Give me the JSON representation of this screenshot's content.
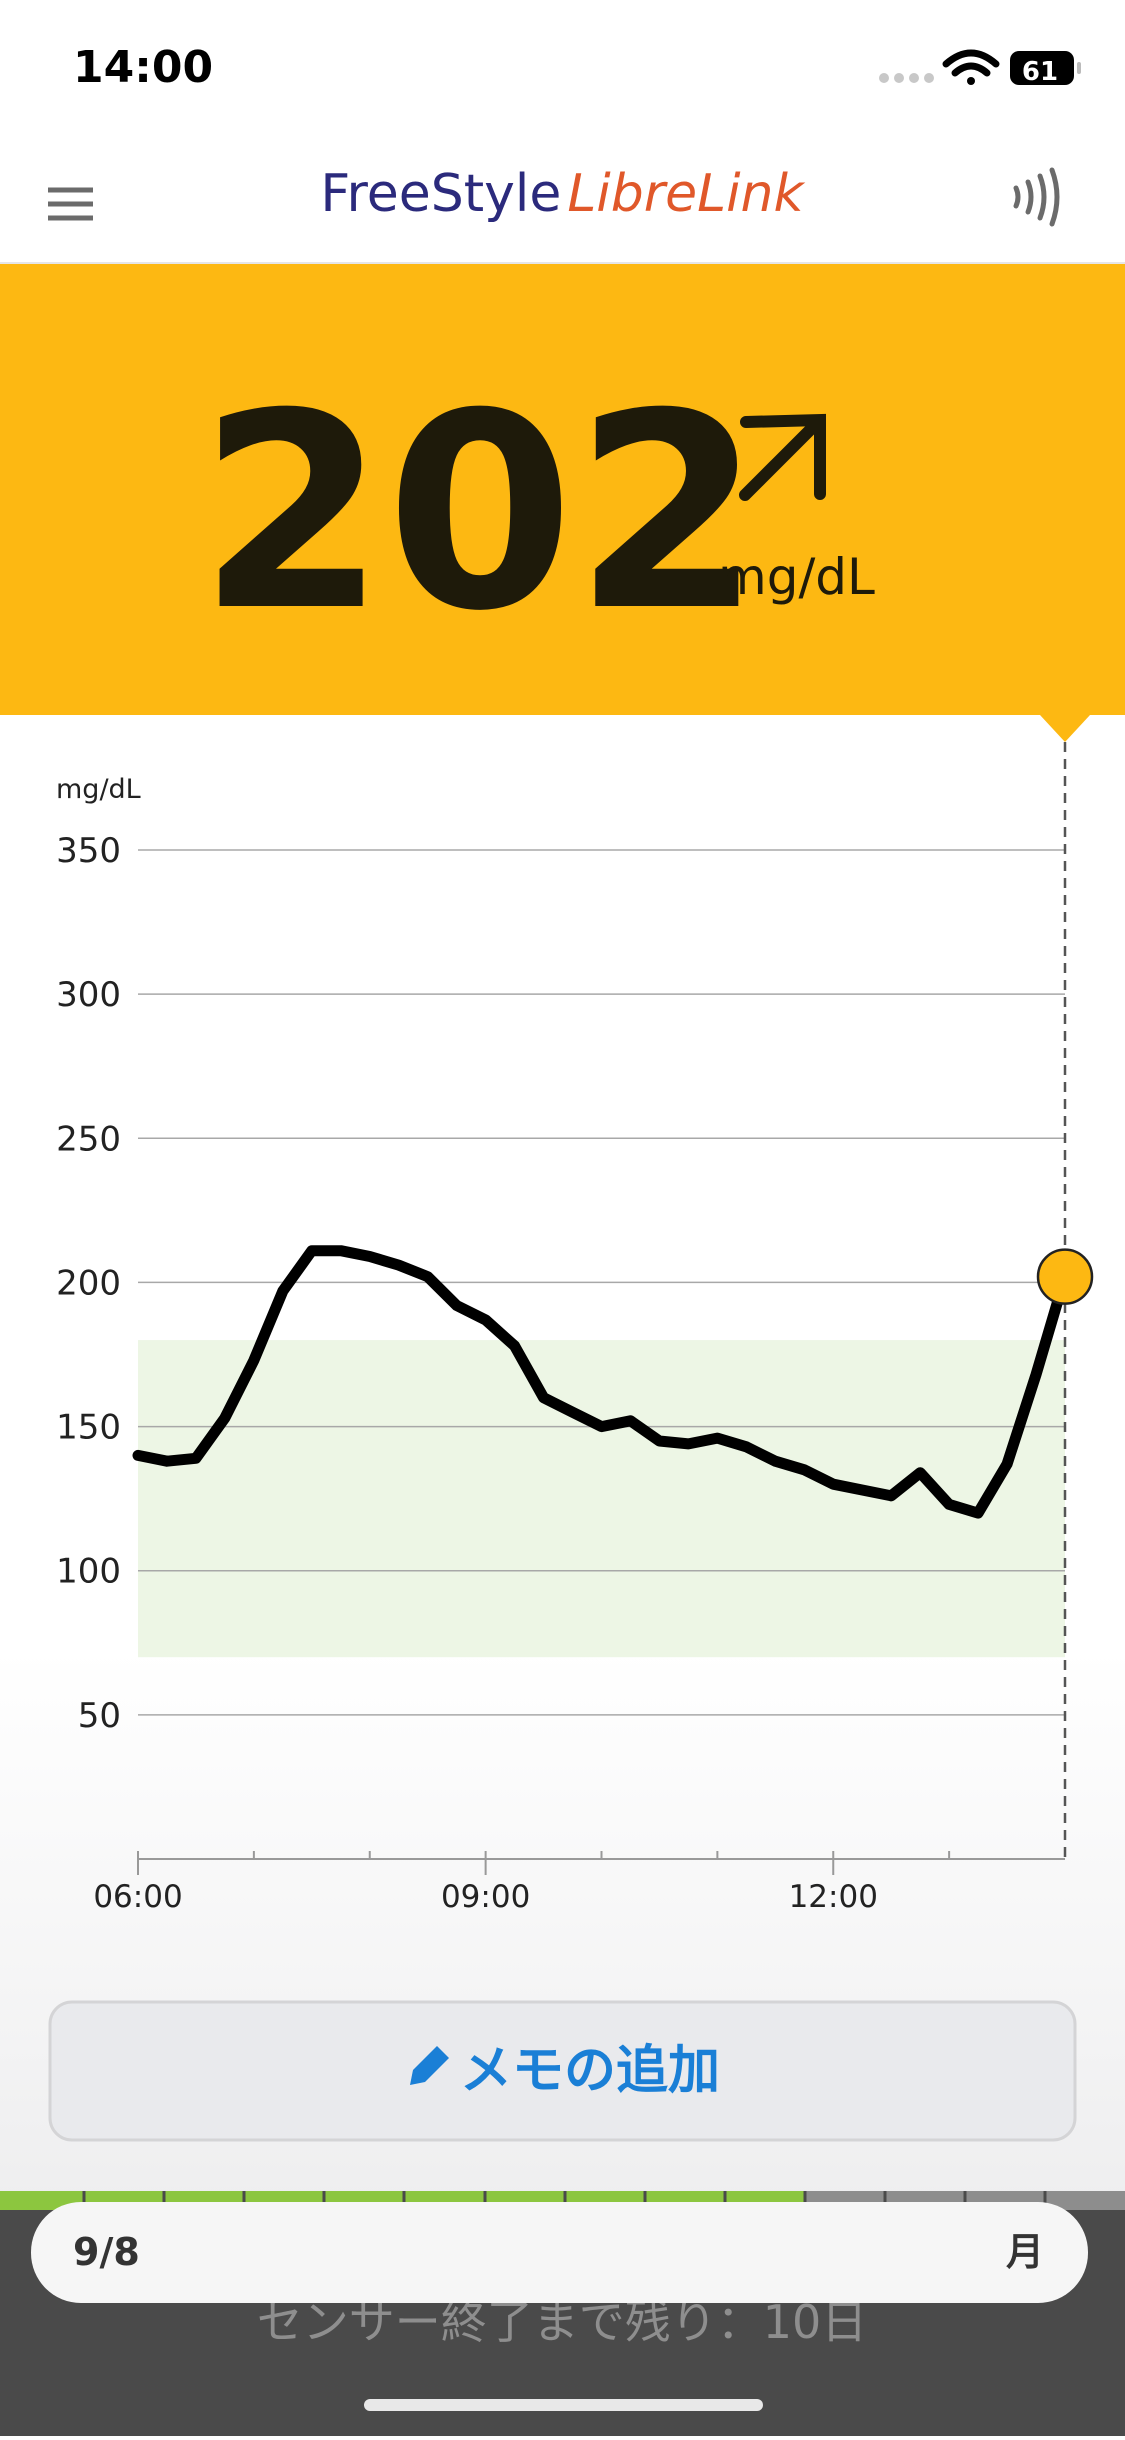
{
  "status_bar": {
    "time": "14:00",
    "battery": "61"
  },
  "header": {
    "logo_part1": "FreeStyle",
    "logo_part2": "LibreLink"
  },
  "reading": {
    "value": 202,
    "unit": "mg/dL"
  },
  "chart_data": {
    "type": "line",
    "y_label": "mg/dL",
    "x": [
      "06:00",
      "06:15",
      "06:30",
      "06:45",
      "07:00",
      "07:15",
      "07:30",
      "07:45",
      "08:00",
      "08:15",
      "08:30",
      "08:45",
      "09:00",
      "09:15",
      "09:30",
      "09:45",
      "10:00",
      "10:15",
      "10:30",
      "10:45",
      "11:00",
      "11:15",
      "11:30",
      "11:45",
      "12:00",
      "12:15",
      "12:30",
      "12:45",
      "13:00",
      "13:15",
      "13:30",
      "13:45",
      "14:00"
    ],
    "series": [
      {
        "color": "#000000",
        "values": [
          140,
          138,
          139,
          153,
          173,
          197,
          211,
          211,
          209,
          206,
          202,
          192,
          187,
          178,
          160,
          155,
          150,
          152,
          145,
          144,
          146,
          143,
          138,
          135,
          130,
          128,
          126,
          134,
          123,
          120,
          137,
          168,
          202
        ]
      }
    ],
    "xlim": [
      "06:00",
      "14:00"
    ],
    "xticks": [
      "06:00",
      "09:00",
      "12:00"
    ],
    "minor_xticks": [
      "07:00",
      "08:00",
      "10:00",
      "11:00",
      "13:00"
    ],
    "ylim": [
      0,
      350
    ],
    "yticks": [
      50,
      100,
      150,
      200,
      250,
      300,
      350
    ],
    "grid": true,
    "target_range": [
      70,
      180
    ],
    "target_color": "#edf6e5",
    "marker_color": "#fdb812"
  },
  "memo_button": "メモの追加",
  "footer": {
    "date": "9/8",
    "weekday": "月",
    "sensor_remaining": "センサー終了まで残り：10日"
  }
}
